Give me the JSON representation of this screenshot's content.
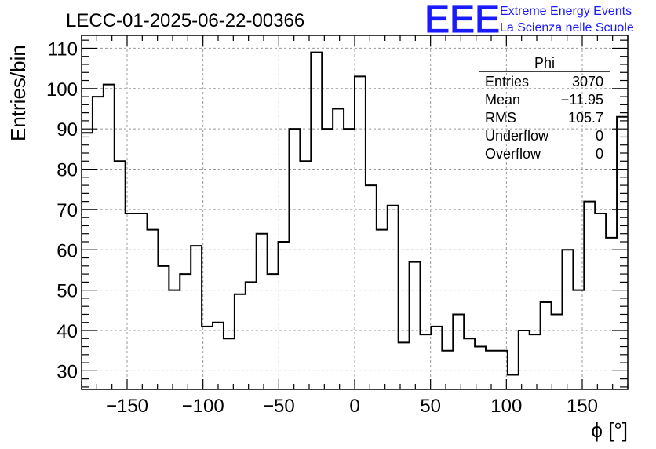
{
  "title": "LECC-01-2025-06-22-00366",
  "logo": {
    "text": "EEE",
    "line1": "Extreme Energy Events",
    "line2": "La Scienza nelle Scuole",
    "color": "#1a1aff"
  },
  "stats": {
    "name": "Phi",
    "rows": [
      {
        "label": "Entries",
        "value": "3070"
      },
      {
        "label": "Mean",
        "value": "−11.95"
      },
      {
        "label": "RMS",
        "value": "105.7"
      },
      {
        "label": "Underflow",
        "value": "0"
      },
      {
        "label": "Overflow",
        "value": "0"
      }
    ]
  },
  "chart_data": {
    "type": "histogram",
    "xlabel": "ϕ [°]",
    "ylabel": "Entries/bin",
    "xlim": [
      -180,
      180
    ],
    "ylim": [
      25.4,
      113.2
    ],
    "bin_width": 7.2,
    "bin_edges_start": -180,
    "values": [
      89,
      98,
      101,
      82,
      69,
      69,
      65,
      56,
      50,
      54,
      61,
      41,
      42,
      38,
      49,
      52,
      64,
      54,
      62,
      90,
      82,
      109,
      90,
      95,
      90,
      103,
      76,
      65,
      71,
      37,
      57,
      39,
      41,
      35,
      44,
      38,
      36,
      35,
      35,
      29,
      40,
      39,
      47,
      44,
      60,
      50,
      72,
      69,
      63,
      93
    ],
    "xticks": [
      -150,
      -100,
      -50,
      0,
      50,
      100,
      150
    ],
    "xtick_labels": [
      "−150",
      "−100",
      "−50",
      "0",
      "50",
      "100",
      "150"
    ],
    "yticks": [
      30,
      40,
      50,
      60,
      70,
      80,
      90,
      100,
      110
    ],
    "ytick_labels": [
      "30",
      "40",
      "50",
      "60",
      "70",
      "80",
      "90",
      "100",
      "110"
    ],
    "grid": true,
    "line_color": "#000000"
  }
}
